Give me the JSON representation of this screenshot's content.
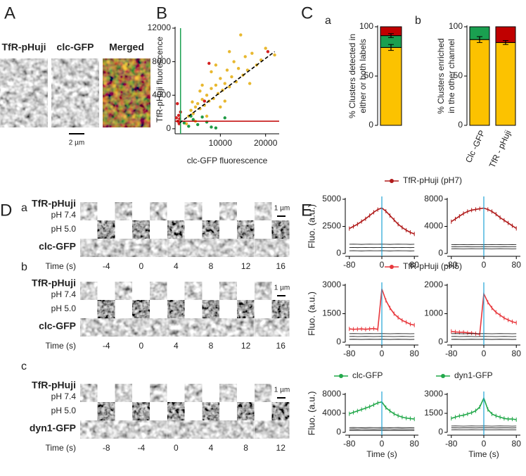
{
  "panel_a": {
    "label": "A",
    "channels": [
      {
        "name": "TfR-pHuji",
        "color": "#b01a1a"
      },
      {
        "name": "clc-GFP",
        "color": "#1a9a40"
      },
      {
        "name": "Merged",
        "color": "#f0a838"
      }
    ],
    "scale_bar": "2 µm"
  },
  "panel_d": {
    "label": "D",
    "rows": [
      {
        "label": "a",
        "probe": {
          "name": "TfR-pHuji",
          "color": "#b01a1a"
        },
        "ph_high": "pH 7.4",
        "ph_low": "pH 5.0",
        "marker": {
          "name": "clc-GFP",
          "color": "#1a9a40"
        },
        "time_label": "Time (s)",
        "times": [
          "-4",
          "0",
          "4",
          "8",
          "12",
          "16"
        ],
        "scale_bar": "1 µm"
      },
      {
        "label": "b",
        "probe": {
          "name": "TfR-pHuji",
          "color": "#b01a1a"
        },
        "ph_high": "pH 7.4",
        "ph_low": "pH 5.0",
        "marker": {
          "name": "clc-GFP",
          "color": "#1a9a40"
        },
        "time_label": "Time (s)",
        "times": [
          "-4",
          "0",
          "4",
          "8",
          "12",
          "16"
        ],
        "scale_bar": "1 µm"
      },
      {
        "label": "c",
        "probe": {
          "name": "TfR-pHuji",
          "color": "#b01a1a"
        },
        "ph_high": "pH 7.4",
        "ph_low": "pH 5.0",
        "marker": {
          "name": "dyn1-GFP",
          "color": "#1a9a40"
        },
        "time_label": "Time (s)",
        "times": [
          "-8",
          "-4",
          "0",
          "4",
          "8",
          "12"
        ],
        "scale_bar": "1 µm"
      }
    ]
  },
  "chart_data": [
    {
      "panel": "B",
      "type": "scatter",
      "xlabel": "clc-GFP fluorescence",
      "ylabel": "TfR-pHuji fluorescence",
      "xlim": [
        0,
        23000
      ],
      "ylim": [
        -600,
        12000
      ],
      "xticks": [
        10000,
        20000
      ],
      "yticks": [
        0,
        4000,
        8000,
        12000
      ],
      "series": [
        {
          "color": "#e8b830",
          "x": [
            3000,
            3500,
            4000,
            4500,
            5000,
            5500,
            6000,
            6500,
            7000,
            7500,
            8000,
            8500,
            9000,
            9500,
            10000,
            10500,
            11000,
            11500,
            12000,
            12500,
            13000,
            13500,
            14000,
            15000,
            15500,
            16000,
            17000,
            18000,
            19000,
            22000,
            14500,
            12000,
            9000,
            6000,
            7000,
            10000,
            4500,
            5500,
            8000,
            11000,
            2500,
            3800,
            16500,
            20000
          ],
          "values": [
            1500,
            2200,
            1800,
            2600,
            3000,
            2400,
            3500,
            2800,
            4000,
            3300,
            4800,
            3600,
            5200,
            4200,
            6000,
            4600,
            5400,
            7000,
            5000,
            6200,
            8000,
            5600,
            7200,
            6400,
            8600,
            7000,
            9000,
            7600,
            8200,
            8800,
            11200,
            9200,
            7600,
            5200,
            1500,
            2600,
            900,
            4500,
            6800,
            3300,
            600,
            3200,
            5400,
            9600
          ]
        },
        {
          "color": "#d42020",
          "x": [
            500,
            800,
            1000,
            600,
            1200,
            300,
            900,
            7500,
            6500,
            20500
          ],
          "values": [
            3000,
            1600,
            1200,
            900,
            2000,
            1300,
            600,
            7800,
            3300,
            9200
          ]
        },
        {
          "color": "#1f9a45",
          "x": [
            2000,
            3000,
            4000,
            5000,
            6000,
            8000,
            11000,
            3500,
            7000,
            9000
          ],
          "values": [
            700,
            300,
            1100,
            500,
            1400,
            200,
            1300,
            1500,
            800,
            100
          ]
        }
      ],
      "hlines": [
        {
          "value": 900,
          "color": "#c00000"
        }
      ],
      "vlines": [
        {
          "value": 1200,
          "color": "#1aa050"
        }
      ],
      "fit": {
        "x": [
          1000,
          22000
        ],
        "values": [
          700,
          9200
        ],
        "color": "#000000"
      }
    },
    {
      "panel": "C",
      "sublabel": "a",
      "type": "stacked_bar",
      "ylabel": [
        "% Clusters detected in",
        "either or both labels"
      ],
      "categories": [
        null
      ],
      "ylim": [
        0,
        100
      ],
      "yticks": [
        0,
        50,
        100
      ],
      "series": [
        {
          "color": "#fcc200",
          "values": [
            79
          ],
          "errors": [
            3
          ]
        },
        {
          "color": "#1aa050",
          "values": [
            12
          ],
          "errors": [
            2
          ]
        },
        {
          "color": "#c00000",
          "values": [
            9
          ]
        }
      ]
    },
    {
      "sublabel": "b",
      "type": "stacked_bar",
      "ylabel": [
        "% Clusters enriched",
        "in the other channel"
      ],
      "categories": [
        "Clc -GFP",
        "TfR - pHuji"
      ],
      "ylim": [
        0,
        100
      ],
      "yticks": [
        0,
        50,
        100
      ],
      "series": [
        {
          "color": "#fcc200",
          "values": [
            87,
            84
          ],
          "errors": [
            3,
            2
          ]
        },
        {
          "color": "#1aa050",
          "values": [
            13,
            null
          ]
        },
        {
          "color": "#c00000",
          "values": [
            null,
            16
          ]
        }
      ]
    },
    {
      "panel": "E",
      "type": "line",
      "ylabel": "Fluo. (a.u.)",
      "legend": "top-pair",
      "x": [
        -80,
        -70,
        -60,
        -50,
        -40,
        -30,
        -20,
        -10,
        0,
        10,
        20,
        30,
        40,
        50,
        60,
        70,
        80
      ],
      "xlim": [
        -90,
        90
      ],
      "xticks": [
        -80,
        0,
        80
      ],
      "ylim": [
        0,
        5000
      ],
      "yticks": [
        0,
        2500,
        5000
      ],
      "vline": 0,
      "vline_color": "#1fa3d6",
      "series": [
        {
          "name": "TfR-pHuji (pH7)",
          "color": "#b01a1a",
          "values": [
            2300,
            2500,
            2700,
            2950,
            3200,
            3500,
            3800,
            4050,
            4200,
            3900,
            3500,
            3100,
            2700,
            2400,
            2150,
            1950,
            1800
          ]
        },
        {
          "color": "#000000",
          "values": [
            250,
            260,
            250,
            240,
            250,
            260,
            250,
            250,
            260,
            250,
            240,
            250,
            260,
            250,
            250,
            240,
            250
          ]
        },
        {
          "color": "#000000",
          "values": [
            550,
            560,
            540,
            550,
            560,
            550,
            540,
            550,
            560,
            550,
            550,
            540,
            550,
            560,
            550,
            540,
            550
          ]
        },
        {
          "color": "#000000",
          "values": [
            850,
            860,
            850,
            840,
            850,
            860,
            850,
            850,
            860,
            850,
            840,
            850,
            860,
            850,
            850,
            840,
            850
          ]
        }
      ]
    },
    {
      "type": "line",
      "x": [
        -80,
        -70,
        -60,
        -50,
        -40,
        -30,
        -20,
        -10,
        0,
        10,
        20,
        30,
        40,
        50,
        60,
        70,
        80
      ],
      "xlim": [
        -90,
        90
      ],
      "xticks": [
        -80,
        0,
        80
      ],
      "ylim": [
        0,
        8000
      ],
      "yticks": [
        0,
        4000,
        8000
      ],
      "vline": 0,
      "vline_color": "#1fa3d6",
      "series": [
        {
          "color": "#b01a1a",
          "values": [
            4700,
            5100,
            5500,
            5900,
            6200,
            6400,
            6500,
            6600,
            6700,
            6500,
            6200,
            5800,
            5300,
            4900,
            4500,
            4100,
            3700
          ]
        },
        {
          "color": "#000000",
          "values": [
            700,
            710,
            700,
            690,
            700,
            710,
            700,
            700,
            710,
            700,
            690,
            700,
            710,
            700,
            700,
            690,
            700
          ]
        },
        {
          "color": "#000000",
          "values": [
            1000,
            1010,
            990,
            1000,
            1010,
            1000,
            990,
            1000,
            1010,
            1000,
            1000,
            990,
            1000,
            1010,
            1000,
            990,
            1000
          ]
        },
        {
          "color": "#000000",
          "values": [
            1300,
            1310,
            1300,
            1290,
            1300,
            1310,
            1300,
            1300,
            1310,
            1300,
            1290,
            1300,
            1310,
            1300,
            1300,
            1290,
            1300
          ]
        }
      ]
    },
    {
      "type": "line",
      "ylabel": "Fluo. (a.u.)",
      "legend": "top-pair",
      "x": [
        -80,
        -70,
        -60,
        -50,
        -40,
        -30,
        -20,
        -10,
        0,
        10,
        20,
        30,
        40,
        50,
        60,
        70,
        80
      ],
      "xlim": [
        -90,
        90
      ],
      "xticks": [
        -80,
        0,
        80
      ],
      "ylim": [
        0,
        3000
      ],
      "yticks": [
        0,
        1500,
        3000
      ],
      "vline": 0,
      "vline_color": "#1fa3d6",
      "series": [
        {
          "name": "TfR-pHuji (pH5)",
          "color": "#e8383d",
          "values": [
            700,
            680,
            690,
            700,
            680,
            700,
            720,
            680,
            2800,
            2200,
            1800,
            1500,
            1300,
            1150,
            1050,
            950,
            900
          ]
        },
        {
          "color": "#000000",
          "values": [
            150,
            155,
            150,
            145,
            150,
            155,
            150,
            150,
            155,
            150,
            145,
            150,
            155,
            150,
            150,
            145,
            150
          ]
        },
        {
          "color": "#000000",
          "values": [
            300,
            305,
            295,
            300,
            305,
            300,
            295,
            300,
            305,
            300,
            300,
            295,
            300,
            305,
            300,
            295,
            300
          ]
        },
        {
          "color": "#000000",
          "values": [
            450,
            455,
            450,
            445,
            450,
            455,
            450,
            450,
            455,
            450,
            445,
            450,
            455,
            450,
            450,
            445,
            450
          ]
        }
      ]
    },
    {
      "type": "line",
      "x": [
        -80,
        -70,
        -60,
        -50,
        -40,
        -30,
        -20,
        -10,
        0,
        10,
        20,
        30,
        40,
        50,
        60,
        70,
        80
      ],
      "xlim": [
        -90,
        90
      ],
      "xticks": [
        -80,
        0,
        80
      ],
      "ylim": [
        0,
        2000
      ],
      "yticks": [
        0,
        1000,
        2000
      ],
      "vline": 0,
      "vline_color": "#1fa3d6",
      "series": [
        {
          "color": "#e8383d",
          "values": [
            380,
            360,
            350,
            350,
            330,
            320,
            300,
            280,
            1700,
            1400,
            1200,
            1050,
            950,
            850,
            780,
            720,
            680
          ]
        },
        {
          "color": "#000000",
          "values": [
            100,
            103,
            100,
            97,
            100,
            103,
            100,
            100,
            103,
            100,
            97,
            100,
            103,
            100,
            100,
            97,
            100
          ]
        },
        {
          "color": "#000000",
          "values": [
            200,
            203,
            198,
            200,
            203,
            200,
            198,
            200,
            203,
            200,
            200,
            198,
            200,
            203,
            200,
            198,
            200
          ]
        },
        {
          "color": "#000000",
          "values": [
            300,
            303,
            300,
            297,
            300,
            303,
            300,
            300,
            303,
            300,
            297,
            300,
            303,
            300,
            300,
            297,
            300
          ]
        }
      ]
    },
    {
      "type": "line",
      "ylabel": "Fluo. (a.u.)",
      "xlabel": "Time (s)",
      "legend": "top",
      "x": [
        -80,
        -70,
        -60,
        -50,
        -40,
        -30,
        -20,
        -10,
        0,
        10,
        20,
        30,
        40,
        50,
        60,
        70,
        80
      ],
      "xlim": [
        -90,
        90
      ],
      "xticks": [
        -80,
        0,
        80
      ],
      "ylim": [
        0,
        8000
      ],
      "yticks": [
        0,
        4000,
        8000
      ],
      "vline": 0,
      "vline_color": "#1fa3d6",
      "series": [
        {
          "name": "clc-GFP",
          "color": "#22a84a",
          "values": [
            3900,
            4200,
            4500,
            4800,
            5100,
            5400,
            5800,
            6200,
            6400,
            5200,
            4500,
            3900,
            3500,
            3200,
            3000,
            2900,
            2800
          ]
        },
        {
          "color": "#000000",
          "values": [
            400,
            410,
            400,
            390,
            400,
            410,
            400,
            400,
            410,
            400,
            390,
            400,
            410,
            400,
            400,
            390,
            400
          ]
        },
        {
          "color": "#000000",
          "values": [
            700,
            710,
            690,
            700,
            710,
            700,
            690,
            700,
            710,
            700,
            700,
            690,
            700,
            710,
            700,
            690,
            700
          ]
        },
        {
          "color": "#000000",
          "values": [
            1000,
            1010,
            1000,
            990,
            1000,
            1010,
            1000,
            1000,
            1010,
            1000,
            990,
            1000,
            1010,
            1000,
            1000,
            990,
            1000
          ]
        }
      ]
    },
    {
      "type": "line",
      "xlabel": "Time (s)",
      "legend": "top",
      "x": [
        -80,
        -70,
        -60,
        -50,
        -40,
        -30,
        -20,
        -10,
        0,
        10,
        20,
        30,
        40,
        50,
        60,
        70,
        80
      ],
      "xlim": [
        -90,
        90
      ],
      "xticks": [
        -80,
        0,
        80
      ],
      "ylim": [
        0,
        3000
      ],
      "yticks": [
        0,
        1500,
        3000
      ],
      "vline": 0,
      "vline_color": "#1fa3d6",
      "series": [
        {
          "name": "dyn1-GFP",
          "color": "#22a84a",
          "values": [
            1100,
            1200,
            1300,
            1350,
            1450,
            1550,
            1700,
            2000,
            2700,
            1800,
            1450,
            1300,
            1200,
            1100,
            1050,
            1050,
            1000
          ]
        },
        {
          "color": "#000000",
          "values": [
            200,
            205,
            200,
            195,
            200,
            205,
            200,
            200,
            205,
            200,
            195,
            200,
            205,
            200,
            200,
            195,
            200
          ]
        },
        {
          "color": "#000000",
          "values": [
            350,
            355,
            345,
            350,
            355,
            350,
            345,
            350,
            355,
            350,
            350,
            345,
            350,
            355,
            350,
            345,
            350
          ]
        },
        {
          "color": "#000000",
          "values": [
            500,
            505,
            500,
            495,
            500,
            505,
            500,
            500,
            505,
            500,
            495,
            500,
            505,
            500,
            500,
            495,
            500
          ]
        }
      ]
    }
  ]
}
